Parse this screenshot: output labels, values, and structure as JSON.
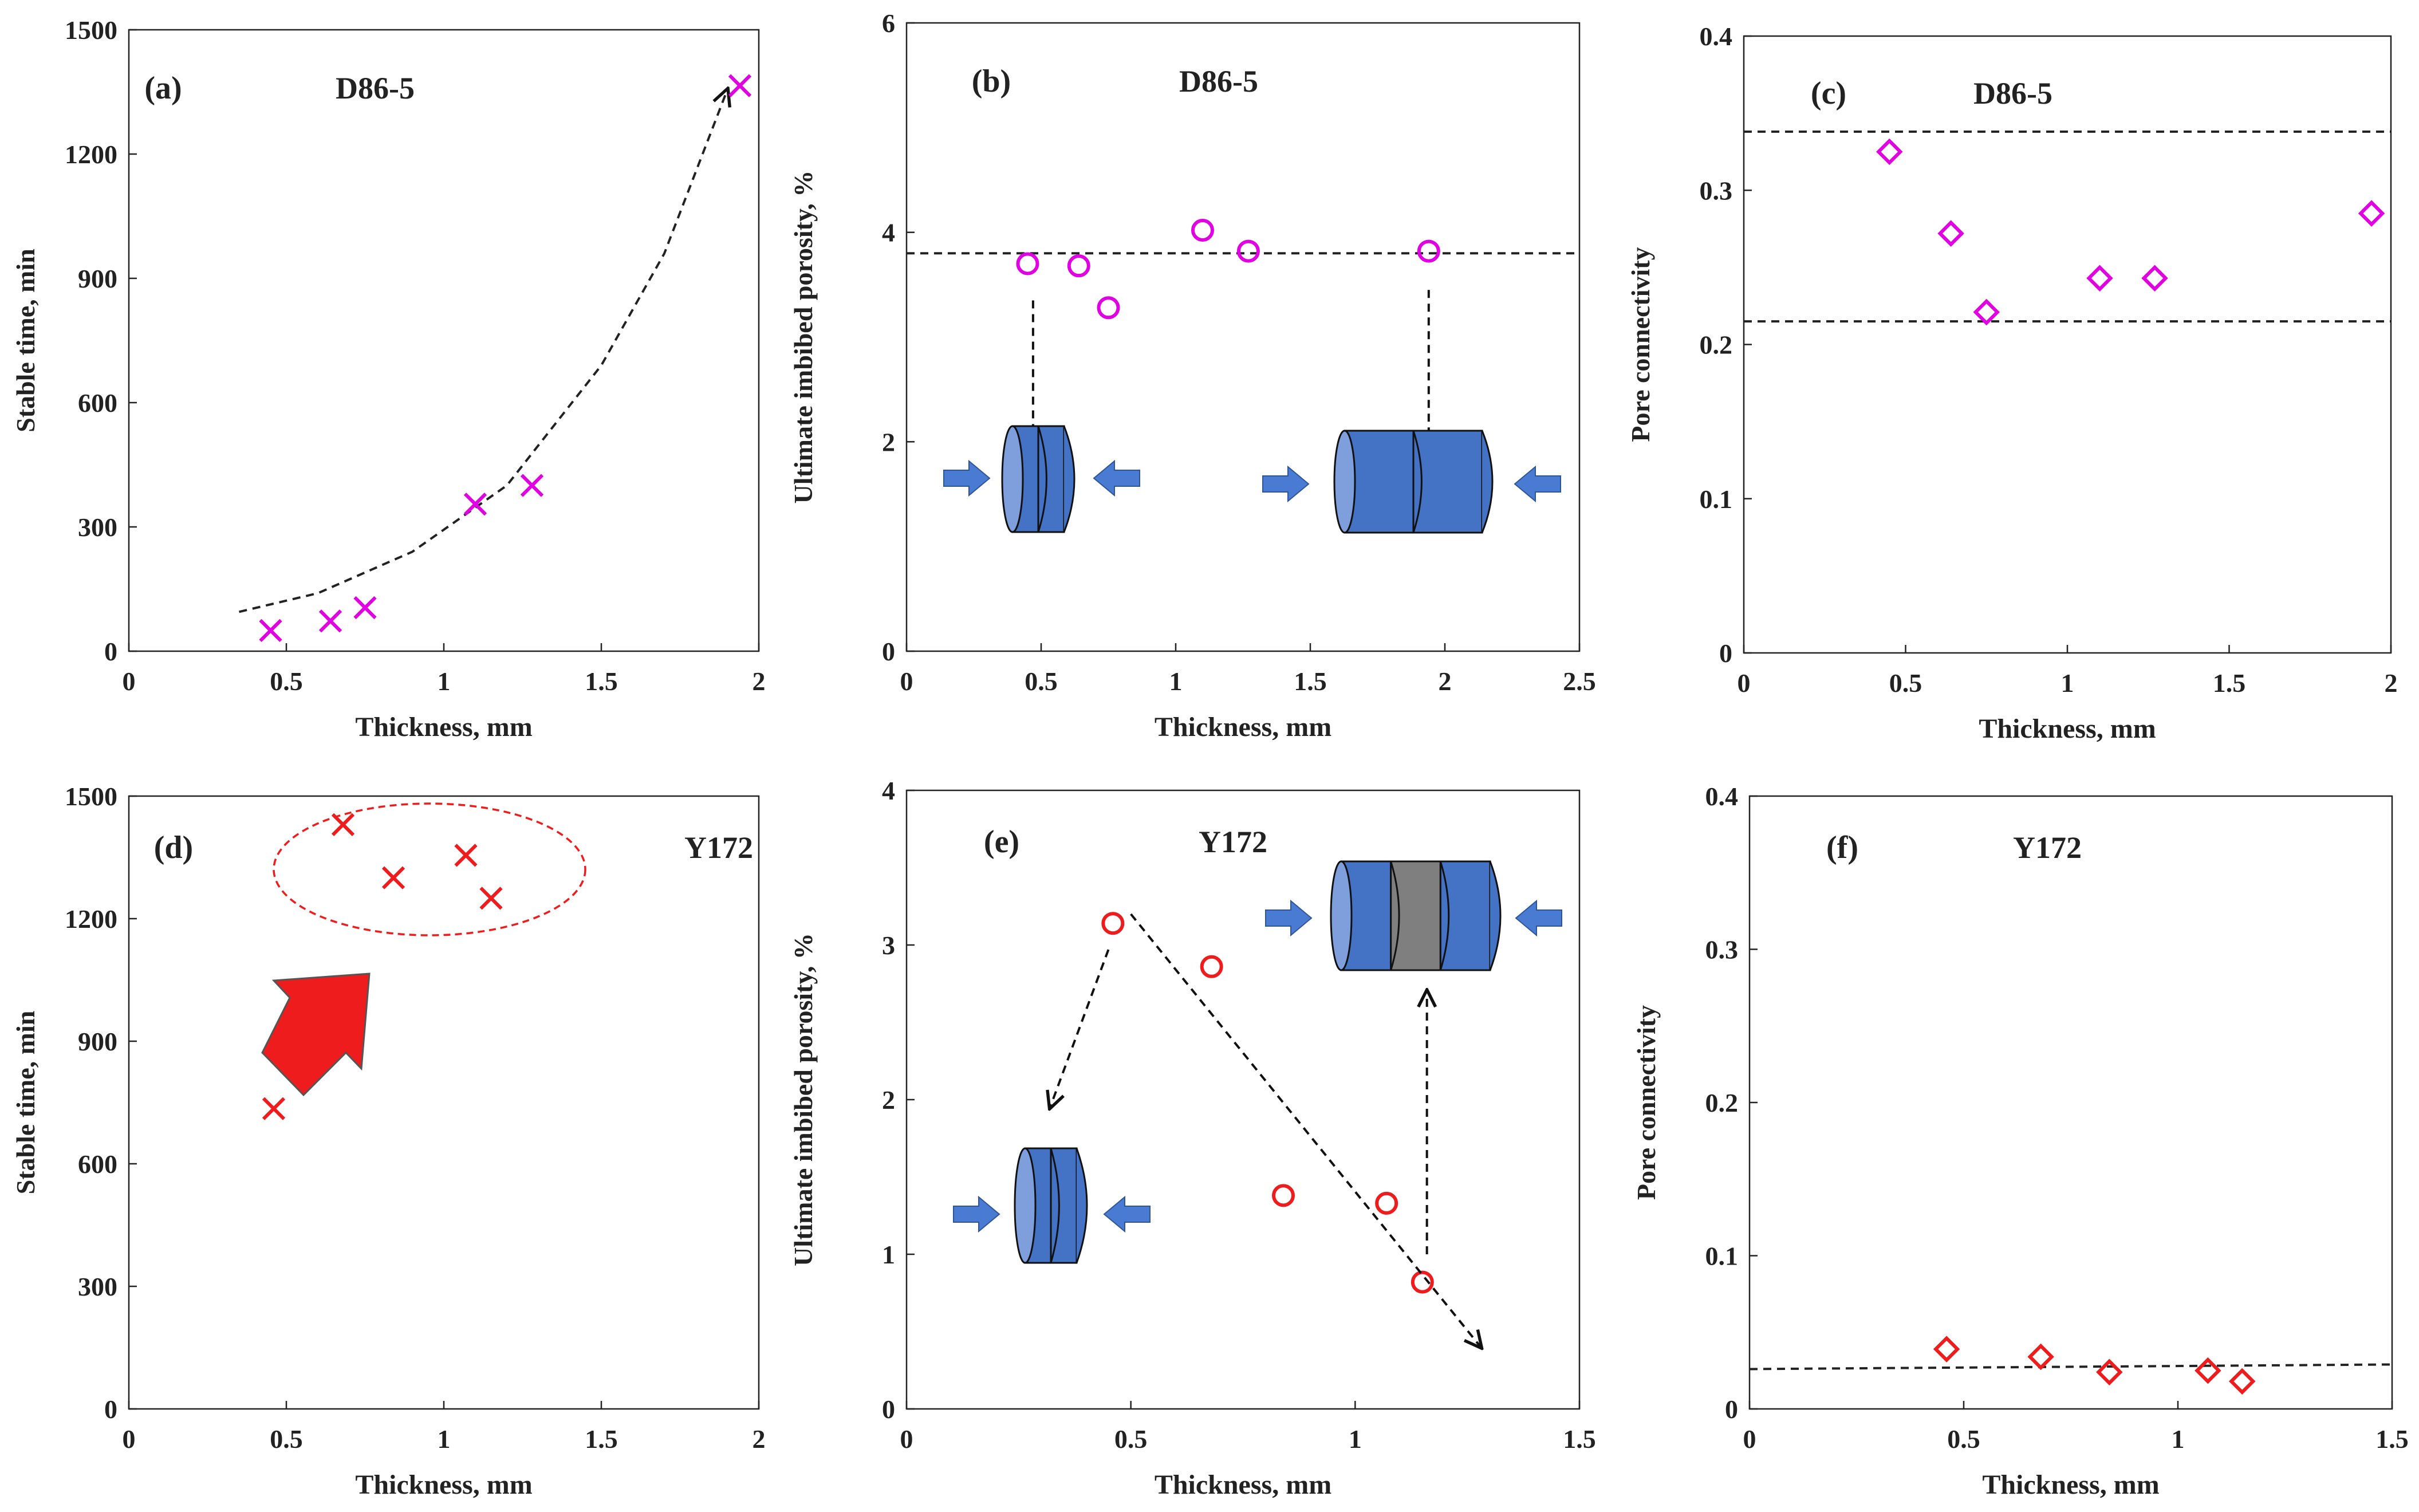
{
  "colors": {
    "magenta": "#e100e1",
    "red": "#ee1c1c",
    "cylinder_blue": "#4472c4",
    "cylinder_gray": "#7f7f7f",
    "arrow_blue": "#4a7bd3"
  },
  "chart_data": [
    {
      "id": "a",
      "type": "scatter",
      "panel_label": "(a)",
      "sample": "D86-5",
      "xlabel": "Thickness, mm",
      "ylabel": "Stable time, min",
      "xlim": [
        0,
        2
      ],
      "ylim": [
        0,
        1500
      ],
      "xticks": [
        "0",
        "0.5",
        "1",
        "1.5",
        "2"
      ],
      "yticks": [
        "0",
        "300",
        "600",
        "900",
        "1200",
        "1500"
      ],
      "marker": "x",
      "color": "#e100e1",
      "x": [
        0.45,
        0.64,
        0.75,
        1.1,
        1.28,
        1.94
      ],
      "y": [
        50,
        73,
        105,
        355,
        400,
        1365
      ],
      "trend_curve": {
        "x": [
          0.35,
          0.6,
          0.9,
          1.2,
          1.5,
          1.7,
          1.9
        ],
        "y": [
          95,
          140,
          240,
          400,
          690,
          960,
          1355
        ],
        "arrow_end": true
      }
    },
    {
      "id": "b",
      "type": "scatter",
      "panel_label": "(b)",
      "sample": "D86-5",
      "xlabel": "Thickness, mm",
      "ylabel": "Ultimate imbibed porosity, %",
      "xlim": [
        0,
        2.5
      ],
      "ylim": [
        0,
        6
      ],
      "xticks": [
        "0",
        "0.5",
        "1",
        "1.5",
        "2",
        "2.5"
      ],
      "yticks": [
        "0",
        "2",
        "4",
        "6"
      ],
      "marker": "circle",
      "color": "#e100e1",
      "x": [
        0.45,
        0.64,
        0.75,
        1.1,
        1.27,
        1.94
      ],
      "y": [
        3.7,
        3.68,
        3.28,
        4.02,
        3.82,
        3.82
      ],
      "hline": 3.8
    },
    {
      "id": "c",
      "type": "scatter",
      "panel_label": "(c)",
      "sample": "D86-5",
      "xlabel": "Thickness, mm",
      "ylabel": "Pore connectivity",
      "xlim": [
        0,
        2
      ],
      "ylim": [
        0,
        0.4
      ],
      "xticks": [
        "0",
        "0.5",
        "1",
        "1.5",
        "2"
      ],
      "yticks": [
        "0",
        "0.1",
        "0.2",
        "0.3",
        "0.4"
      ],
      "marker": "diamond",
      "color": "#e100e1",
      "x": [
        0.45,
        0.64,
        0.75,
        1.1,
        1.27,
        1.94
      ],
      "y": [
        0.325,
        0.272,
        0.221,
        0.243,
        0.243,
        0.285
      ],
      "hlines": [
        0.338,
        0.215
      ]
    },
    {
      "id": "d",
      "type": "scatter",
      "panel_label": "(d)",
      "sample": "Y172",
      "xlabel": "Thickness, mm",
      "ylabel": "Stable time, min",
      "xlim": [
        0,
        2
      ],
      "ylim": [
        0,
        1500
      ],
      "xticks": [
        "0",
        "0.5",
        "1",
        "1.5",
        "2"
      ],
      "yticks": [
        "0",
        "300",
        "600",
        "900",
        "1200",
        "1500"
      ],
      "marker": "x",
      "color": "#ee1c1c",
      "x": [
        0.46,
        0.68,
        0.84,
        1.07,
        1.15
      ],
      "y": [
        735,
        1430,
        1300,
        1355,
        1250
      ]
    },
    {
      "id": "e",
      "type": "scatter",
      "panel_label": "(e)",
      "sample": "Y172",
      "xlabel": "Thickness, mm",
      "ylabel": "Ultimate imbibed porosity, %",
      "xlim": [
        0,
        1.5
      ],
      "ylim": [
        0,
        4
      ],
      "xticks": [
        "0",
        "0.5",
        "1",
        "1.5"
      ],
      "yticks": [
        "0",
        "1",
        "2",
        "3",
        "4"
      ],
      "marker": "circle",
      "color": "#ee1c1c",
      "x": [
        0.46,
        0.68,
        0.84,
        1.07,
        1.15
      ],
      "y": [
        3.14,
        2.86,
        1.38,
        1.33,
        0.82
      ]
    },
    {
      "id": "f",
      "type": "scatter",
      "panel_label": "(f)",
      "sample": "Y172",
      "xlabel": "Thickness, mm",
      "ylabel": "Pore connectivity",
      "xlim": [
        0,
        1.5
      ],
      "ylim": [
        0,
        0.4
      ],
      "xticks": [
        "0",
        "0.5",
        "1",
        "1.5"
      ],
      "yticks": [
        "0",
        "0.1",
        "0.2",
        "0.3",
        "0.4"
      ],
      "marker": "diamond",
      "color": "#ee1c1c",
      "x": [
        0.46,
        0.68,
        0.84,
        1.07,
        1.15
      ],
      "y": [
        0.039,
        0.034,
        0.024,
        0.025,
        0.018
      ],
      "trend_line": {
        "x": [
          0,
          1.5
        ],
        "y": [
          0.026,
          0.029
        ]
      }
    }
  ]
}
